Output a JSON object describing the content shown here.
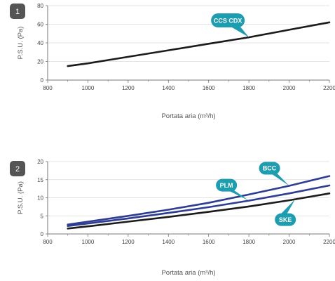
{
  "colors": {
    "callout": "#1d9db0",
    "badge": "#555555",
    "axis": "#777777",
    "grid": "#dddddd",
    "series_dark": "#1b1b1b",
    "series_blue": "#2e3d92"
  },
  "chart_data": [
    {
      "type": "line",
      "badge": "1",
      "xlabel": "Portata aria (m³/h)",
      "ylabel": "P.S.U. (Pa)",
      "xlim": [
        800,
        2200
      ],
      "ylim": [
        0,
        80
      ],
      "x_ticks": [
        "800",
        "1000",
        "1200",
        "1400",
        "1600",
        "1800",
        "2000",
        "2200"
      ],
      "y_ticks": [
        "0",
        "20",
        "40",
        "60",
        "80"
      ],
      "grid": true,
      "series": [
        {
          "name": "CCS CDX",
          "color": "#1b1b1b",
          "x": [
            900,
            1000,
            1200,
            1400,
            1600,
            1800,
            2000,
            2200
          ],
          "y": [
            15,
            18,
            25,
            32,
            39,
            46,
            54,
            62
          ],
          "label_at": 1800
        }
      ]
    },
    {
      "type": "line",
      "badge": "2",
      "xlabel": "Portata aria (m³/h)",
      "ylabel": "P.S.U. (Pa)",
      "xlim": [
        800,
        2200
      ],
      "ylim": [
        0,
        20
      ],
      "x_ticks": [
        "800",
        "1000",
        "1200",
        "1400",
        "1600",
        "1800",
        "2000",
        "2200"
      ],
      "y_ticks": [
        "0",
        "5",
        "10",
        "15",
        "20"
      ],
      "grid": true,
      "series": [
        {
          "name": "BCC",
          "color": "#2e3d92",
          "x": [
            900,
            1000,
            1200,
            1400,
            1600,
            1800,
            2000,
            2200
          ],
          "y": [
            2.6,
            3.4,
            5.0,
            6.7,
            8.6,
            10.9,
            13.3,
            16.0
          ],
          "label_at": 2000
        },
        {
          "name": "PLM",
          "color": "#2e3d92",
          "x": [
            900,
            1000,
            1200,
            1400,
            1600,
            1800,
            2000,
            2200
          ],
          "y": [
            2.2,
            2.9,
            4.3,
            5.8,
            7.4,
            9.2,
            11.2,
            13.4
          ],
          "label_at": 1800
        },
        {
          "name": "SKE",
          "color": "#1b1b1b",
          "x": [
            900,
            1000,
            1200,
            1400,
            1600,
            1800,
            2000,
            2200
          ],
          "y": [
            1.5,
            2.1,
            3.4,
            4.7,
            6.1,
            7.6,
            9.3,
            11.2
          ],
          "label_at": 2030
        }
      ]
    }
  ]
}
